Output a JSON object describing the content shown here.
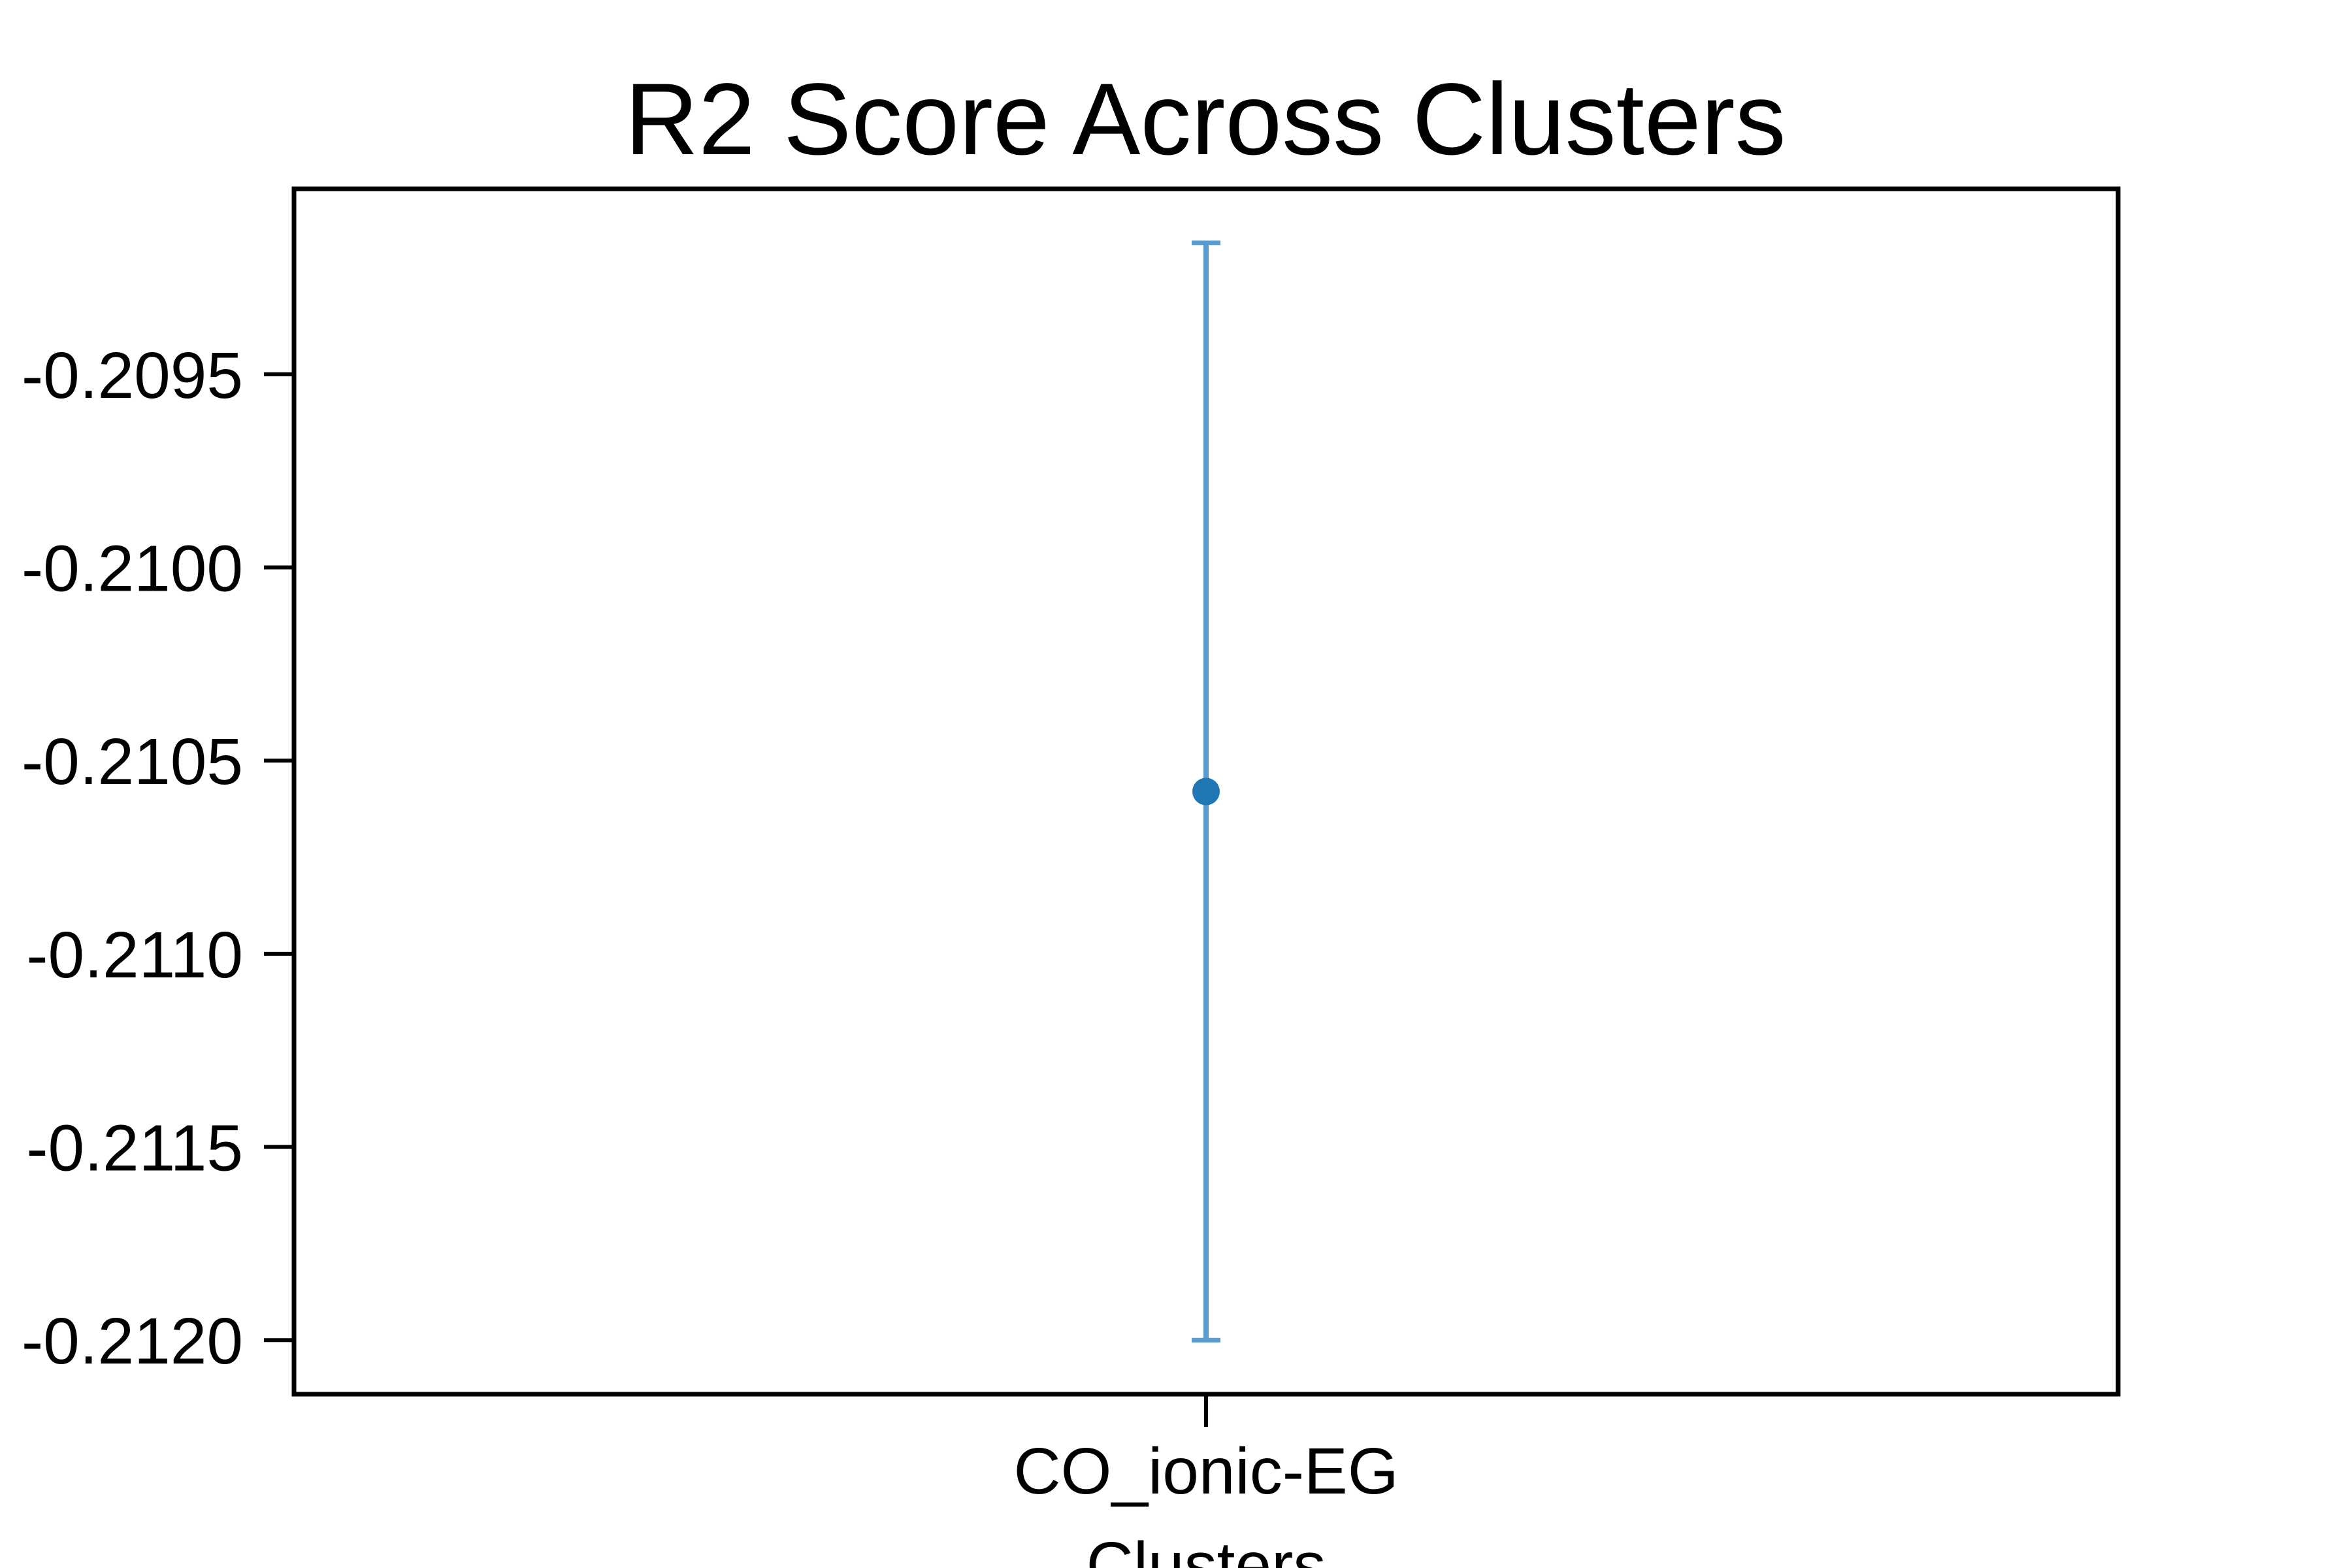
{
  "chart_data": {
    "type": "scatter",
    "title": "R2 Score Across Clusters",
    "xlabel": "Clusters",
    "ylabel": "",
    "categories": [
      "CO_ionic-EG"
    ],
    "y_ticks": [
      -0.2095,
      -0.21,
      -0.2105,
      -0.211,
      -0.2115,
      -0.212
    ],
    "y_tick_labels": [
      "-0.2095",
      "-0.2100",
      "-0.2105",
      "-0.2110",
      "-0.2115",
      "-0.2120"
    ],
    "ylim": [
      -0.21214,
      -0.20902
    ],
    "grid": false,
    "legend": "none",
    "series": [
      {
        "values": [
          -0.21058
        ],
        "error_lower": [
          -0.212
        ],
        "error_upper": [
          -0.20916
        ],
        "marker_color": "#1f77b4",
        "errorbar_color": "#5a9bd0"
      }
    ]
  }
}
